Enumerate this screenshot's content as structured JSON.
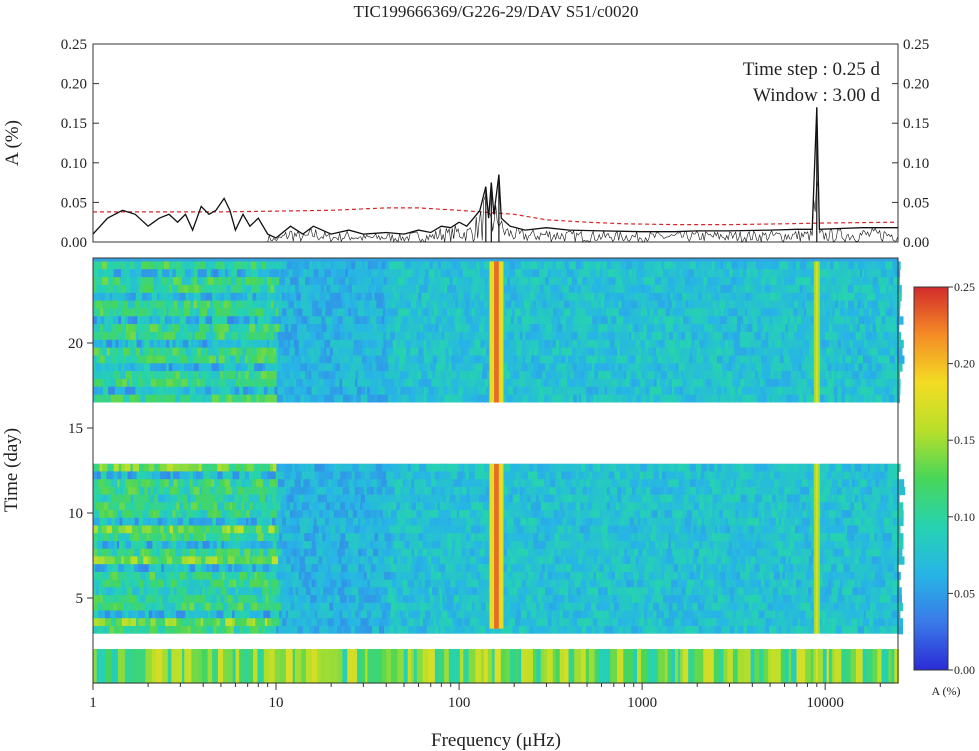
{
  "chart_data": [
    {
      "type": "line",
      "panel": "amplitude-spectrum",
      "title": "TIC199666369/G226-29/DAV   S51/c0020",
      "ylabel": "A (%)",
      "xscale": "log",
      "xlim": [
        1,
        25000
      ],
      "ylim": [
        0,
        0.25
      ],
      "yticks": [
        "0.00",
        "0.05",
        "0.10",
        "0.15",
        "0.20",
        "0.25"
      ],
      "annotations": [
        "Time step : 0.25 d",
        "Window : 3.00 d"
      ],
      "series": [
        {
          "color": "#111111",
          "style": "solid",
          "points": [
            [
              1,
              0.01
            ],
            [
              1.2,
              0.03
            ],
            [
              1.45,
              0.04
            ],
            [
              1.7,
              0.035
            ],
            [
              2.0,
              0.02
            ],
            [
              2.3,
              0.03
            ],
            [
              2.6,
              0.035
            ],
            [
              2.9,
              0.025
            ],
            [
              3.2,
              0.035
            ],
            [
              3.5,
              0.015
            ],
            [
              3.9,
              0.045
            ],
            [
              4.3,
              0.035
            ],
            [
              4.7,
              0.04
            ],
            [
              5.2,
              0.055
            ],
            [
              5.6,
              0.04
            ],
            [
              6.0,
              0.015
            ],
            [
              6.6,
              0.035
            ],
            [
              7.2,
              0.02
            ],
            [
              8.0,
              0.03
            ],
            [
              9.0,
              0.01
            ],
            [
              10,
              0.005
            ],
            [
              12,
              0.02
            ],
            [
              14,
              0.01
            ],
            [
              16,
              0.02
            ],
            [
              20,
              0.01
            ],
            [
              25,
              0.015
            ],
            [
              30,
              0.01
            ],
            [
              40,
              0.012
            ],
            [
              50,
              0.01
            ],
            [
              60,
              0.015
            ],
            [
              70,
              0.012
            ],
            [
              80,
              0.02
            ],
            [
              90,
              0.018
            ],
            [
              100,
              0.025
            ],
            [
              110,
              0.02
            ],
            [
              120,
              0.03
            ],
            [
              130,
              0.04
            ],
            [
              140,
              0.07
            ],
            [
              145,
              0.03
            ],
            [
              150,
              0.075
            ],
            [
              155,
              0.035
            ],
            [
              165,
              0.085
            ],
            [
              170,
              0.03
            ],
            [
              190,
              0.02
            ],
            [
              230,
              0.015
            ],
            [
              300,
              0.018
            ],
            [
              400,
              0.015
            ],
            [
              600,
              0.014
            ],
            [
              1000,
              0.013
            ],
            [
              1500,
              0.013
            ],
            [
              2000,
              0.014
            ],
            [
              3000,
              0.014
            ],
            [
              5000,
              0.015
            ],
            [
              7000,
              0.016
            ],
            [
              8500,
              0.016
            ],
            [
              9000,
              0.17
            ],
            [
              9300,
              0.016
            ],
            [
              12000,
              0.017
            ],
            [
              16000,
              0.018
            ],
            [
              25000,
              0.018
            ]
          ]
        },
        {
          "color": "#d62728",
          "style": "dashed",
          "points": [
            [
              1,
              0.038
            ],
            [
              5,
              0.038
            ],
            [
              10,
              0.039
            ],
            [
              20,
              0.04
            ],
            [
              40,
              0.043
            ],
            [
              60,
              0.043
            ],
            [
              100,
              0.04
            ],
            [
              150,
              0.037
            ],
            [
              200,
              0.035
            ],
            [
              300,
              0.028
            ],
            [
              500,
              0.025
            ],
            [
              800,
              0.023
            ],
            [
              1500,
              0.022
            ],
            [
              3000,
              0.022
            ],
            [
              6000,
              0.023
            ],
            [
              10000,
              0.024
            ],
            [
              25000,
              0.025
            ]
          ]
        }
      ],
      "peaks": [
        [
          140,
          0.07
        ],
        [
          150,
          0.075
        ],
        [
          165,
          0.085
        ],
        [
          9000,
          0.17
        ]
      ]
    },
    {
      "type": "heatmap",
      "panel": "sliding-window-periodogram",
      "xlabel": "Frequency (μHz)",
      "ylabel": "Time (day)",
      "xscale": "log",
      "xlim": [
        1,
        25000
      ],
      "xticks": [
        "1",
        "10",
        "100",
        "1000",
        "10000"
      ],
      "ylim": [
        0,
        25
      ],
      "yticks": [
        "5",
        "10",
        "15",
        "20"
      ],
      "gaps_days": [
        [
          2.0,
          2.9
        ],
        [
          12.9,
          16.5
        ]
      ],
      "bands": [
        {
          "frequency": 160,
          "strength": "strong",
          "spans_days": [
            [
              3.2,
              12.9
            ],
            [
              16.5,
              24.8
            ]
          ]
        },
        {
          "frequency": 9000,
          "strength": "medium",
          "spans_days": [
            [
              0,
              24.8
            ]
          ]
        }
      ],
      "colorbar": {
        "label": "A (%)",
        "range": [
          0,
          0.25
        ],
        "ticks": [
          "0.00",
          "0.05",
          "0.10",
          "0.15",
          "0.20",
          "0.25"
        ],
        "colors": [
          "#2b2bd6",
          "#3a7ae8",
          "#27b5e6",
          "#26d3b0",
          "#48d65a",
          "#b8df2a",
          "#f3dc23",
          "#f58c26",
          "#d22b2b"
        ]
      }
    }
  ]
}
